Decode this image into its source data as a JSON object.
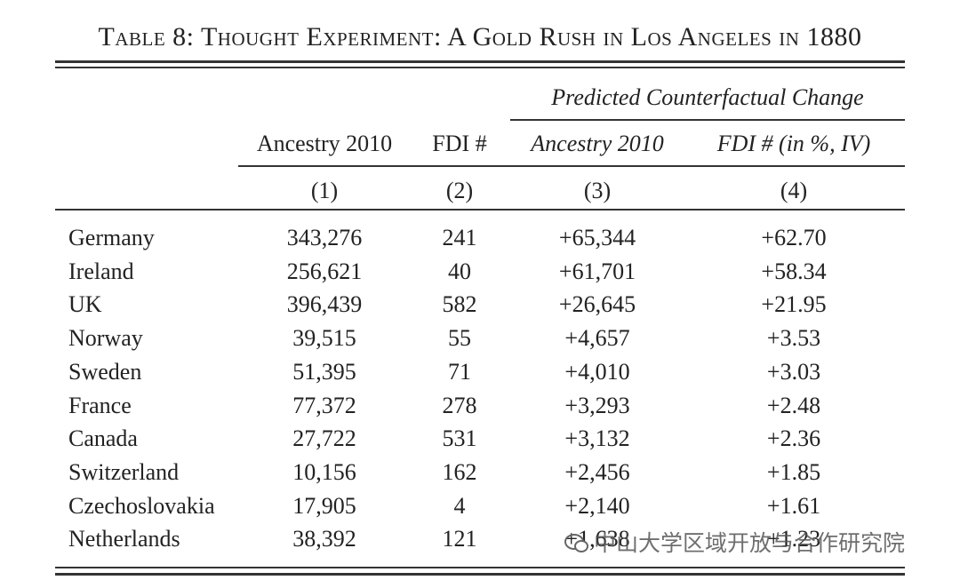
{
  "title": "Table 8: Thought Experiment: A Gold Rush in Los Angeles in 1880",
  "header": {
    "group": "Predicted Counterfactual Change",
    "columns": [
      "Ancestry 2010",
      "FDI #",
      "Ancestry 2010",
      "FDI # (in %, IV)"
    ],
    "numbers": [
      "(1)",
      "(2)",
      "(3)",
      "(4)"
    ]
  },
  "rows": [
    [
      "Germany",
      "343,276",
      "241",
      "+65,344",
      "+62.70"
    ],
    [
      "Ireland",
      "256,621",
      "40",
      "+61,701",
      "+58.34"
    ],
    [
      "UK",
      "396,439",
      "582",
      "+26,645",
      "+21.95"
    ],
    [
      "Norway",
      "39,515",
      "55",
      "+4,657",
      "+3.53"
    ],
    [
      "Sweden",
      "51,395",
      "71",
      "+4,010",
      "+3.03"
    ],
    [
      "France",
      "77,372",
      "278",
      "+3,293",
      "+2.48"
    ],
    [
      "Canada",
      "27,722",
      "531",
      "+3,132",
      "+2.36"
    ],
    [
      "Switzerland",
      "10,156",
      "162",
      "+2,456",
      "+1.85"
    ],
    [
      "Czechoslovakia",
      "17,905",
      "4",
      "+2,140",
      "+1.61"
    ],
    [
      "Netherlands",
      "38,392",
      "121",
      "+1,638",
      "+1.23"
    ]
  ],
  "watermark": "中山大学区域开放与合作研究院"
}
